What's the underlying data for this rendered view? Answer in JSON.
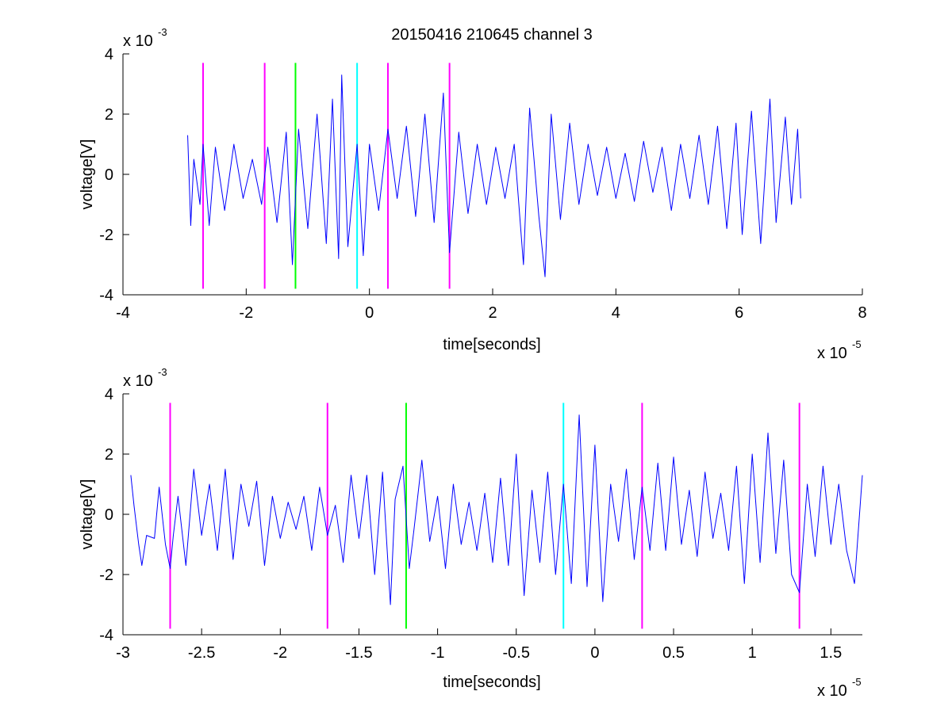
{
  "title": "20150416 210645 channel 3",
  "colors": {
    "signal": "#0000ff",
    "magenta": "#ff00ff",
    "green": "#00ff00",
    "cyan": "#00ffff",
    "axis": "#000000",
    "background": "#ffffff"
  },
  "chart_data": [
    {
      "type": "line",
      "title": "20150416 210645 channel 3",
      "xlabel": "time[seconds]",
      "ylabel": "voltage[V]",
      "x_multiplier_label": "x 10",
      "x_multiplier_exp": "-5",
      "y_multiplier_label": "x 10",
      "y_multiplier_exp": "-3",
      "xlim": [
        -4,
        8
      ],
      "ylim": [
        -4,
        4
      ],
      "x_units_scale": "1e-5 s",
      "y_units_scale": "1e-3 V",
      "xticks": [
        -4,
        -2,
        0,
        2,
        4,
        6,
        8
      ],
      "xtick_labels": [
        "-4",
        "-2",
        "0",
        "2",
        "4",
        "6",
        "8"
      ],
      "yticks": [
        -4,
        -2,
        0,
        2,
        4
      ],
      "ytick_labels": [
        "-4",
        "-2",
        "0",
        "2",
        "4"
      ],
      "grid": false,
      "series": [
        {
          "color": "blue",
          "x_range": [
            -2.95,
            7.0
          ],
          "points": [
            [
              -2.95,
              1.3
            ],
            [
              -2.9,
              -1.7
            ],
            [
              -2.85,
              0.5
            ],
            [
              -2.75,
              -1.0
            ],
            [
              -2.7,
              1.0
            ],
            [
              -2.6,
              -1.7
            ],
            [
              -2.5,
              0.9
            ],
            [
              -2.35,
              -1.2
            ],
            [
              -2.2,
              1.0
            ],
            [
              -2.05,
              -0.8
            ],
            [
              -1.9,
              0.5
            ],
            [
              -1.75,
              -1.0
            ],
            [
              -1.65,
              0.9
            ],
            [
              -1.5,
              -1.6
            ],
            [
              -1.35,
              1.4
            ],
            [
              -1.25,
              -3.0
            ],
            [
              -1.15,
              1.5
            ],
            [
              -1.0,
              -1.8
            ],
            [
              -0.85,
              2.0
            ],
            [
              -0.7,
              -2.3
            ],
            [
              -0.6,
              2.5
            ],
            [
              -0.5,
              -2.8
            ],
            [
              -0.45,
              3.3
            ],
            [
              -0.35,
              -2.4
            ],
            [
              -0.2,
              1.0
            ],
            [
              -0.1,
              -2.7
            ],
            [
              0.0,
              1.0
            ],
            [
              0.15,
              -1.2
            ],
            [
              0.3,
              1.5
            ],
            [
              0.45,
              -0.8
            ],
            [
              0.6,
              1.6
            ],
            [
              0.75,
              -1.4
            ],
            [
              0.9,
              2.0
            ],
            [
              1.05,
              -1.6
            ],
            [
              1.2,
              2.7
            ],
            [
              1.3,
              -2.6
            ],
            [
              1.45,
              1.4
            ],
            [
              1.6,
              -1.3
            ],
            [
              1.75,
              1.0
            ],
            [
              1.9,
              -1.0
            ],
            [
              2.05,
              0.9
            ],
            [
              2.2,
              -0.8
            ],
            [
              2.35,
              1.0
            ],
            [
              2.5,
              -3.0
            ],
            [
              2.6,
              2.2
            ],
            [
              2.75,
              -1.4
            ],
            [
              2.85,
              -3.4
            ],
            [
              2.95,
              2.0
            ],
            [
              3.1,
              -1.5
            ],
            [
              3.25,
              1.7
            ],
            [
              3.4,
              -1.0
            ],
            [
              3.55,
              1.0
            ],
            [
              3.7,
              -0.7
            ],
            [
              3.85,
              0.9
            ],
            [
              4.0,
              -0.8
            ],
            [
              4.15,
              0.7
            ],
            [
              4.3,
              -0.9
            ],
            [
              4.45,
              1.1
            ],
            [
              4.6,
              -0.6
            ],
            [
              4.75,
              0.9
            ],
            [
              4.9,
              -1.2
            ],
            [
              5.05,
              1.0
            ],
            [
              5.2,
              -0.8
            ],
            [
              5.35,
              1.3
            ],
            [
              5.5,
              -1.0
            ],
            [
              5.65,
              1.6
            ],
            [
              5.8,
              -1.8
            ],
            [
              5.95,
              1.7
            ],
            [
              6.05,
              -2.0
            ],
            [
              6.2,
              2.1
            ],
            [
              6.35,
              -2.3
            ],
            [
              6.5,
              2.5
            ],
            [
              6.6,
              -1.6
            ],
            [
              6.75,
              1.9
            ],
            [
              6.85,
              -1.0
            ],
            [
              6.95,
              1.5
            ],
            [
              7.0,
              -0.8
            ]
          ]
        }
      ],
      "vlines": [
        {
          "x": -2.7,
          "color": "magenta"
        },
        {
          "x": -1.7,
          "color": "magenta"
        },
        {
          "x": -1.2,
          "color": "green"
        },
        {
          "x": -0.2,
          "color": "cyan"
        },
        {
          "x": 0.3,
          "color": "magenta"
        },
        {
          "x": 1.3,
          "color": "magenta"
        }
      ],
      "vline_ylim": [
        -3.8,
        3.7
      ]
    },
    {
      "type": "line",
      "xlabel": "time[seconds]",
      "ylabel": "voltage[V]",
      "x_multiplier_label": "x 10",
      "x_multiplier_exp": "-5",
      "y_multiplier_label": "x 10",
      "y_multiplier_exp": "-3",
      "xlim": [
        -3.0,
        1.7
      ],
      "ylim": [
        -4,
        4
      ],
      "x_units_scale": "1e-5 s",
      "y_units_scale": "1e-3 V",
      "xticks": [
        -3,
        -2.5,
        -2,
        -1.5,
        -1,
        -0.5,
        0,
        0.5,
        1,
        1.5
      ],
      "xtick_labels": [
        "-3",
        "-2.5",
        "-2",
        "-1.5",
        "-1",
        "-0.5",
        "0",
        "0.5",
        "1",
        "1.5"
      ],
      "yticks": [
        -4,
        -2,
        0,
        2,
        4
      ],
      "ytick_labels": [
        "-4",
        "-2",
        "0",
        "2",
        "4"
      ],
      "grid": false,
      "series": [
        {
          "color": "blue",
          "x_range": [
            -2.95,
            1.7
          ],
          "points": [
            [
              -2.95,
              1.3
            ],
            [
              -2.93,
              0.3
            ],
            [
              -2.9,
              -1.0
            ],
            [
              -2.88,
              -1.7
            ],
            [
              -2.85,
              -0.7
            ],
            [
              -2.8,
              -0.8
            ],
            [
              -2.77,
              0.9
            ],
            [
              -2.73,
              -1.0
            ],
            [
              -2.7,
              -1.8
            ],
            [
              -2.68,
              -0.7
            ],
            [
              -2.65,
              0.6
            ],
            [
              -2.6,
              -1.7
            ],
            [
              -2.55,
              1.5
            ],
            [
              -2.5,
              -0.7
            ],
            [
              -2.45,
              1.0
            ],
            [
              -2.4,
              -1.2
            ],
            [
              -2.35,
              1.5
            ],
            [
              -2.3,
              -1.5
            ],
            [
              -2.25,
              1.0
            ],
            [
              -2.2,
              -0.4
            ],
            [
              -2.15,
              1.1
            ],
            [
              -2.1,
              -1.7
            ],
            [
              -2.05,
              0.6
            ],
            [
              -2.0,
              -0.8
            ],
            [
              -1.95,
              0.4
            ],
            [
              -1.9,
              -0.5
            ],
            [
              -1.85,
              0.6
            ],
            [
              -1.8,
              -1.2
            ],
            [
              -1.75,
              0.9
            ],
            [
              -1.7,
              -0.7
            ],
            [
              -1.65,
              0.3
            ],
            [
              -1.6,
              -1.6
            ],
            [
              -1.55,
              1.3
            ],
            [
              -1.5,
              -0.8
            ],
            [
              -1.45,
              1.3
            ],
            [
              -1.4,
              -2.0
            ],
            [
              -1.35,
              1.4
            ],
            [
              -1.3,
              -3.0
            ],
            [
              -1.27,
              0.5
            ],
            [
              -1.22,
              1.6
            ],
            [
              -1.18,
              -1.8
            ],
            [
              -1.15,
              -0.5
            ],
            [
              -1.1,
              1.8
            ],
            [
              -1.05,
              -0.9
            ],
            [
              -1.0,
              0.6
            ],
            [
              -0.95,
              -1.8
            ],
            [
              -0.9,
              1.0
            ],
            [
              -0.85,
              -1.0
            ],
            [
              -0.8,
              0.4
            ],
            [
              -0.75,
              -1.2
            ],
            [
              -0.7,
              0.7
            ],
            [
              -0.65,
              -1.6
            ],
            [
              -0.6,
              1.2
            ],
            [
              -0.55,
              -1.7
            ],
            [
              -0.5,
              2.0
            ],
            [
              -0.45,
              -2.7
            ],
            [
              -0.4,
              0.8
            ],
            [
              -0.35,
              -1.6
            ],
            [
              -0.3,
              1.4
            ],
            [
              -0.25,
              -2.0
            ],
            [
              -0.2,
              1.0
            ],
            [
              -0.15,
              -2.3
            ],
            [
              -0.1,
              3.3
            ],
            [
              -0.05,
              -2.4
            ],
            [
              0.0,
              2.3
            ],
            [
              0.05,
              -2.9
            ],
            [
              0.1,
              1.0
            ],
            [
              0.15,
              -0.9
            ],
            [
              0.2,
              1.5
            ],
            [
              0.25,
              -1.5
            ],
            [
              0.3,
              0.9
            ],
            [
              0.35,
              -1.2
            ],
            [
              0.4,
              1.7
            ],
            [
              0.45,
              -1.2
            ],
            [
              0.5,
              1.9
            ],
            [
              0.55,
              -1.0
            ],
            [
              0.6,
              0.8
            ],
            [
              0.65,
              -1.4
            ],
            [
              0.7,
              1.4
            ],
            [
              0.75,
              -0.8
            ],
            [
              0.8,
              0.7
            ],
            [
              0.85,
              -1.2
            ],
            [
              0.9,
              1.6
            ],
            [
              0.95,
              -2.3
            ],
            [
              1.0,
              2.0
            ],
            [
              1.05,
              -1.6
            ],
            [
              1.1,
              2.7
            ],
            [
              1.15,
              -1.3
            ],
            [
              1.2,
              1.8
            ],
            [
              1.25,
              -2.0
            ],
            [
              1.3,
              -2.6
            ],
            [
              1.35,
              1.0
            ],
            [
              1.4,
              -1.4
            ],
            [
              1.45,
              1.6
            ],
            [
              1.5,
              -1.0
            ],
            [
              1.55,
              1.0
            ],
            [
              1.6,
              -1.2
            ],
            [
              1.65,
              -2.3
            ],
            [
              1.7,
              1.3
            ]
          ]
        }
      ],
      "vlines": [
        {
          "x": -2.7,
          "color": "magenta"
        },
        {
          "x": -1.7,
          "color": "magenta"
        },
        {
          "x": -1.2,
          "color": "green"
        },
        {
          "x": -0.2,
          "color": "cyan"
        },
        {
          "x": 0.3,
          "color": "magenta"
        },
        {
          "x": 1.3,
          "color": "magenta"
        }
      ],
      "vline_ylim": [
        -3.8,
        3.7
      ]
    }
  ]
}
